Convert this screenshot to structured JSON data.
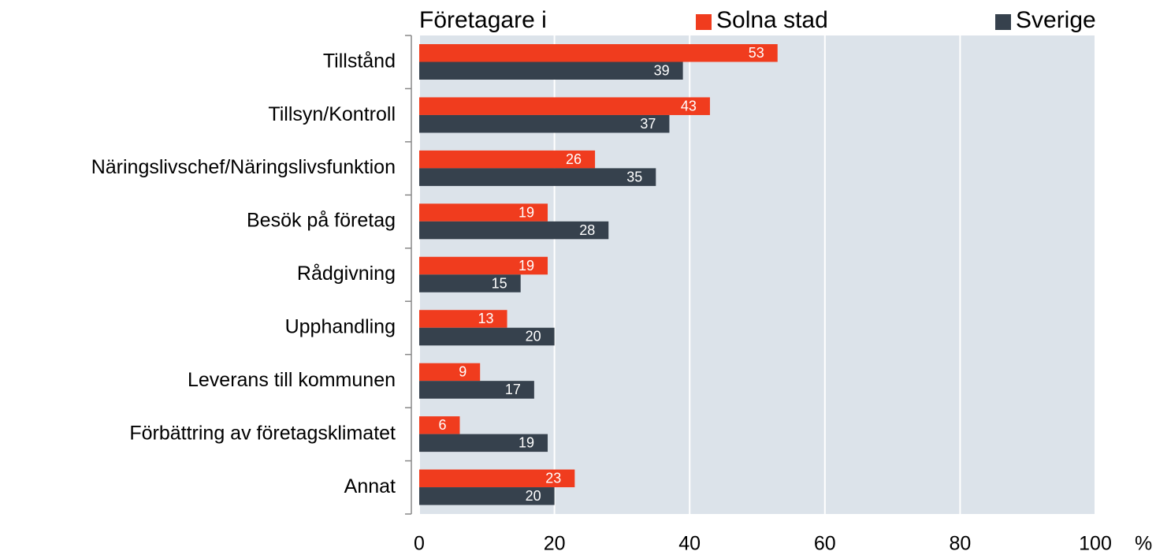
{
  "chart_data": {
    "type": "hbar",
    "legend_title": "Företagare i",
    "categories": [
      "Tillstånd",
      "Tillsyn/Kontroll",
      "Näringslivschef/Näringslivsfunktion",
      "Besök på företag",
      "Rådgivning",
      "Upphandling",
      "Leverans till kommunen",
      "Förbättring av företagsklimatet",
      "Annat"
    ],
    "series": [
      {
        "name": "Solna stad",
        "color": "#f03c1e",
        "values": [
          53,
          43,
          26,
          19,
          19,
          13,
          9,
          6,
          23
        ]
      },
      {
        "name": "Sverige",
        "color": "#36414d",
        "values": [
          39,
          37,
          35,
          28,
          15,
          20,
          17,
          19,
          20
        ]
      }
    ],
    "xlim": [
      0,
      100
    ],
    "xticks": [
      0,
      20,
      40,
      60,
      80,
      100
    ],
    "x_label": "%",
    "grid": true,
    "legend": "top"
  }
}
